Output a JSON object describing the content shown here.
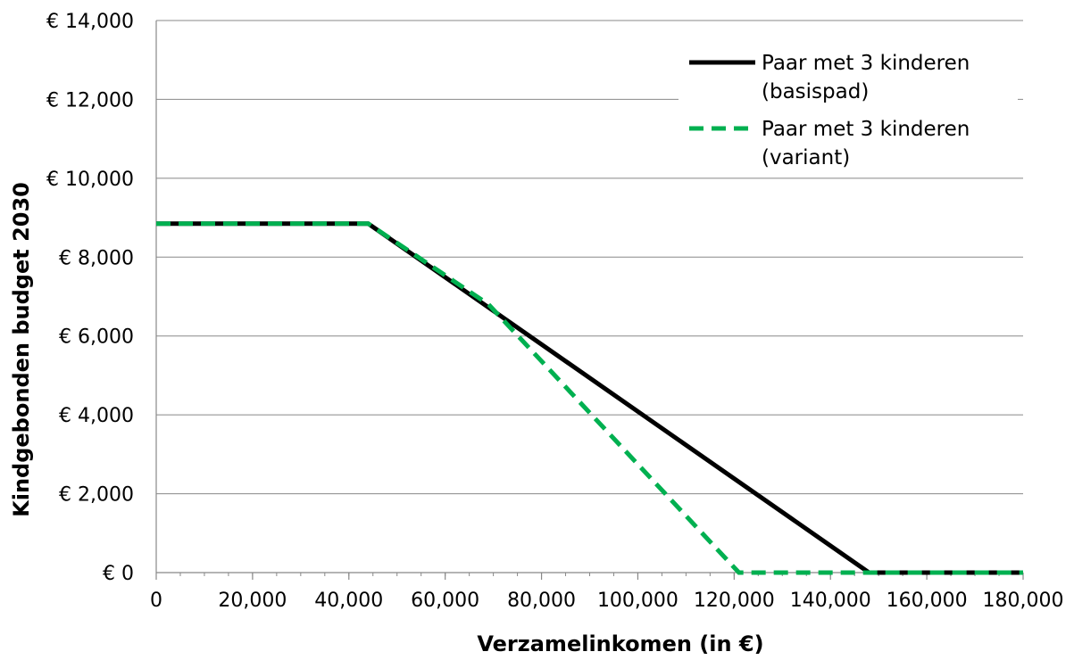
{
  "chart_data": {
    "type": "line",
    "xlabel": "Verzamelinkomen (in €)",
    "ylabel": "Kindgebonden budget 2030",
    "xlim": [
      0,
      180000
    ],
    "ylim": [
      0,
      14000
    ],
    "x_ticks": [
      0,
      20000,
      40000,
      60000,
      80000,
      100000,
      120000,
      140000,
      160000,
      180000
    ],
    "x_tick_labels": [
      "0",
      "20,000",
      "40,000",
      "60,000",
      "80,000",
      "100,000",
      "120,000",
      "140,000",
      "160,000",
      "180,000"
    ],
    "y_ticks": [
      0,
      2000,
      4000,
      6000,
      8000,
      10000,
      12000,
      14000
    ],
    "y_tick_labels": [
      "€ 0",
      "€ 2,000",
      "€ 4,000",
      "€ 6,000",
      "€ 8,000",
      "€ 10,000",
      "€ 12,000",
      "€ 14,000"
    ],
    "grid": "horizontal",
    "legend_position": "top-right",
    "series": [
      {
        "name": "Paar met 3 kinderen (basispad)",
        "legend_lines": [
          "Paar met 3 kinderen",
          "(basispad)"
        ],
        "color": "#000000",
        "style": "solid",
        "x": [
          0,
          44000,
          148000,
          180000
        ],
        "y": [
          8850,
          8850,
          0,
          0
        ]
      },
      {
        "name": "Paar met 3 kinderen (variant)",
        "legend_lines": [
          "Paar met 3 kinderen",
          "(variant)"
        ],
        "color": "#00b050",
        "style": "dashed",
        "x": [
          0,
          44000,
          69000,
          121000,
          180000
        ],
        "y": [
          8850,
          8850,
          6800,
          0,
          0
        ]
      }
    ]
  }
}
